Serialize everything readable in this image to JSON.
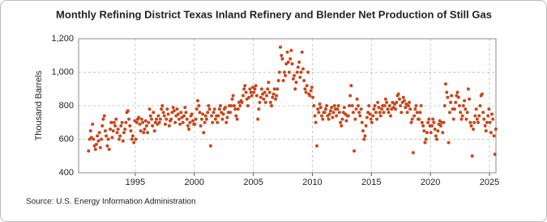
{
  "chart_data": {
    "type": "scatter",
    "title": "Monthly Refining District Texas Inland Refinery and Blender Net Production of Still Gas",
    "y_label": "Thousand Barrels",
    "source": "Source: U.S. Energy Information Administration",
    "color": "#c5481c",
    "grid": true,
    "xlim": [
      1990.2,
      2025.55
    ],
    "xticks": [
      1995,
      2000,
      2005,
      2010,
      2015,
      2020,
      2025
    ],
    "ylim": [
      400,
      1200
    ],
    "yticks": [
      400,
      600,
      800,
      {
        "value": 1000,
        "label": "1,000"
      },
      {
        "value": 1200,
        "label": "1,200"
      }
    ],
    "x": [
      1991.04,
      1991.13,
      1991.21,
      1991.29,
      1991.38,
      1991.46,
      1991.54,
      1991.63,
      1991.71,
      1991.79,
      1991.88,
      1991.96,
      1992.04,
      1992.13,
      1992.21,
      1992.29,
      1992.38,
      1992.46,
      1992.54,
      1992.63,
      1992.71,
      1992.79,
      1992.88,
      1992.96,
      1993.04,
      1993.13,
      1993.21,
      1993.29,
      1993.38,
      1993.46,
      1993.54,
      1993.63,
      1993.71,
      1993.79,
      1993.88,
      1993.96,
      1994.04,
      1994.13,
      1994.21,
      1994.29,
      1994.38,
      1994.46,
      1994.54,
      1994.63,
      1994.71,
      1994.79,
      1994.88,
      1994.96,
      1995.04,
      1995.13,
      1995.21,
      1995.29,
      1995.38,
      1995.46,
      1995.54,
      1995.63,
      1995.71,
      1995.79,
      1995.88,
      1995.96,
      1996.04,
      1996.13,
      1996.21,
      1996.29,
      1996.38,
      1996.46,
      1996.54,
      1996.63,
      1996.71,
      1996.79,
      1996.88,
      1996.96,
      1997.04,
      1997.13,
      1997.21,
      1997.29,
      1997.38,
      1997.46,
      1997.54,
      1997.63,
      1997.71,
      1997.79,
      1997.88,
      1997.96,
      1998.04,
      1998.13,
      1998.21,
      1998.29,
      1998.38,
      1998.46,
      1998.54,
      1998.63,
      1998.71,
      1998.79,
      1998.88,
      1998.96,
      1999.04,
      1999.13,
      1999.21,
      1999.29,
      1999.38,
      1999.46,
      1999.54,
      1999.63,
      1999.71,
      1999.79,
      1999.88,
      1999.96,
      2000.04,
      2000.13,
      2000.21,
      2000.29,
      2000.38,
      2000.46,
      2000.54,
      2000.63,
      2000.71,
      2000.79,
      2000.88,
      2000.96,
      2001.04,
      2001.13,
      2001.21,
      2001.29,
      2001.38,
      2001.46,
      2001.54,
      2001.63,
      2001.71,
      2001.79,
      2001.88,
      2001.96,
      2002.04,
      2002.13,
      2002.21,
      2002.29,
      2002.38,
      2002.46,
      2002.54,
      2002.63,
      2002.71,
      2002.79,
      2002.88,
      2002.96,
      2003.04,
      2003.13,
      2003.21,
      2003.29,
      2003.38,
      2003.46,
      2003.54,
      2003.63,
      2003.71,
      2003.79,
      2003.88,
      2003.96,
      2004.04,
      2004.13,
      2004.21,
      2004.29,
      2004.38,
      2004.46,
      2004.54,
      2004.63,
      2004.71,
      2004.79,
      2004.88,
      2004.96,
      2005.04,
      2005.13,
      2005.21,
      2005.29,
      2005.38,
      2005.46,
      2005.54,
      2005.63,
      2005.71,
      2005.79,
      2005.88,
      2005.96,
      2006.04,
      2006.13,
      2006.21,
      2006.29,
      2006.38,
      2006.46,
      2006.54,
      2006.63,
      2006.71,
      2006.79,
      2006.88,
      2006.96,
      2007.04,
      2007.13,
      2007.21,
      2007.29,
      2007.38,
      2007.46,
      2007.54,
      2007.63,
      2007.71,
      2007.79,
      2007.88,
      2007.96,
      2008.04,
      2008.13,
      2008.21,
      2008.29,
      2008.38,
      2008.46,
      2008.54,
      2008.63,
      2008.71,
      2008.79,
      2008.88,
      2008.96,
      2009.04,
      2009.13,
      2009.21,
      2009.29,
      2009.38,
      2009.46,
      2009.54,
      2009.63,
      2009.71,
      2009.79,
      2009.88,
      2009.96,
      2010.04,
      2010.13,
      2010.21,
      2010.29,
      2010.38,
      2010.46,
      2010.54,
      2010.63,
      2010.71,
      2010.79,
      2010.88,
      2010.96,
      2011.04,
      2011.13,
      2011.21,
      2011.29,
      2011.38,
      2011.46,
      2011.54,
      2011.63,
      2011.71,
      2011.79,
      2011.88,
      2011.96,
      2012.04,
      2012.13,
      2012.21,
      2012.29,
      2012.38,
      2012.46,
      2012.54,
      2012.63,
      2012.71,
      2012.79,
      2012.88,
      2012.96,
      2013.04,
      2013.13,
      2013.21,
      2013.29,
      2013.38,
      2013.46,
      2013.54,
      2013.63,
      2013.71,
      2013.79,
      2013.88,
      2013.96,
      2014.04,
      2014.13,
      2014.21,
      2014.29,
      2014.38,
      2014.46,
      2014.54,
      2014.63,
      2014.71,
      2014.79,
      2014.88,
      2014.96,
      2015.04,
      2015.13,
      2015.21,
      2015.29,
      2015.38,
      2015.46,
      2015.54,
      2015.63,
      2015.71,
      2015.79,
      2015.88,
      2015.96,
      2016.04,
      2016.13,
      2016.21,
      2016.29,
      2016.38,
      2016.46,
      2016.54,
      2016.63,
      2016.71,
      2016.79,
      2016.88,
      2016.96,
      2017.04,
      2017.13,
      2017.21,
      2017.29,
      2017.38,
      2017.46,
      2017.54,
      2017.63,
      2017.71,
      2017.79,
      2017.88,
      2017.96,
      2018.04,
      2018.13,
      2018.21,
      2018.29,
      2018.38,
      2018.46,
      2018.54,
      2018.63,
      2018.71,
      2018.79,
      2018.88,
      2018.96,
      2019.04,
      2019.13,
      2019.21,
      2019.29,
      2019.38,
      2019.46,
      2019.54,
      2019.63,
      2019.71,
      2019.79,
      2019.88,
      2019.96,
      2020.04,
      2020.13,
      2020.21,
      2020.29,
      2020.38,
      2020.46,
      2020.54,
      2020.63,
      2020.71,
      2020.79,
      2020.88,
      2020.96,
      2021.04,
      2021.13,
      2021.21,
      2021.29,
      2021.38,
      2021.46,
      2021.54,
      2021.63,
      2021.71,
      2021.79,
      2021.88,
      2021.96,
      2022.04,
      2022.13,
      2022.21,
      2022.29,
      2022.38,
      2022.46,
      2022.54,
      2022.63,
      2022.71,
      2022.79,
      2022.88,
      2022.96,
      2023.04,
      2023.13,
      2023.21,
      2023.29,
      2023.38,
      2023.46,
      2023.54,
      2023.63,
      2023.71,
      2023.79,
      2023.88,
      2023.96,
      2024.04,
      2024.13,
      2024.21,
      2024.29,
      2024.38,
      2024.46,
      2024.54,
      2024.63,
      2024.71,
      2024.79,
      2024.88,
      2024.96,
      2025.04,
      2025.13,
      2025.21,
      2025.29,
      2025.38,
      2025.46,
      2025.54
    ],
    "values": [
      530,
      600,
      650,
      610,
      690,
      600,
      560,
      540,
      570,
      620,
      590,
      640,
      550,
      600,
      680,
      720,
      740,
      650,
      620,
      560,
      600,
      540,
      660,
      700,
      610,
      650,
      700,
      680,
      720,
      640,
      660,
      600,
      620,
      680,
      700,
      590,
      640,
      660,
      700,
      760,
      770,
      720,
      680,
      650,
      600,
      620,
      580,
      710,
      600,
      700,
      720,
      730,
      690,
      650,
      720,
      700,
      640,
      660,
      710,
      680,
      640,
      700,
      780,
      740,
      720,
      680,
      760,
      650,
      700,
      720,
      690,
      740,
      700,
      720,
      780,
      800,
      760,
      740,
      690,
      720,
      780,
      750,
      680,
      710,
      720,
      760,
      790,
      770,
      700,
      740,
      780,
      750,
      720,
      690,
      760,
      730,
      700,
      740,
      790,
      760,
      720,
      680,
      660,
      700,
      740,
      750,
      710,
      690,
      690,
      720,
      780,
      830,
      800,
      760,
      680,
      720,
      750,
      640,
      700,
      740,
      720,
      760,
      800,
      780,
      560,
      740,
      700,
      760,
      780,
      720,
      740,
      700,
      740,
      780,
      800,
      760,
      720,
      750,
      780,
      790,
      700,
      730,
      760,
      800,
      760,
      800,
      840,
      860,
      800,
      780,
      740,
      720,
      780,
      820,
      800,
      830,
      820,
      860,
      900,
      920,
      880,
      840,
      800,
      850,
      900,
      880,
      860,
      910,
      880,
      900,
      920,
      860,
      720,
      780,
      820,
      850,
      900,
      870,
      840,
      880,
      820,
      860,
      900,
      940,
      880,
      820,
      800,
      850,
      870,
      900,
      840,
      860,
      900,
      950,
      1000,
      1150,
      1100,
      1080,
      950,
      1000,
      980,
      1050,
      1120,
      1060,
      1000,
      1080,
      1130,
      1050,
      960,
      980,
      900,
      940,
      1000,
      1030,
      1060,
      970,
      1000,
      1120,
      1020,
      950,
      900,
      880,
      920,
      1000,
      870,
      860,
      890,
      910,
      850,
      800,
      740,
      700,
      560,
      780,
      760,
      810,
      790,
      740,
      720,
      760,
      760,
      780,
      800,
      740,
      720,
      750,
      770,
      790,
      730,
      760,
      800,
      780,
      740,
      780,
      800,
      760,
      700,
      680,
      720,
      760,
      790,
      750,
      710,
      740,
      740,
      800,
      860,
      920,
      800,
      760,
      530,
      720,
      780,
      840,
      800,
      760,
      740,
      780,
      700,
      650,
      600,
      620,
      680,
      730,
      760,
      800,
      750,
      720,
      700,
      740,
      780,
      800,
      760,
      720,
      820,
      790,
      760,
      740,
      780,
      800,
      760,
      800,
      840,
      820,
      780,
      760,
      800,
      740,
      780,
      820,
      790,
      810,
      780,
      820,
      860,
      870,
      840,
      800,
      760,
      820,
      850,
      830,
      790,
      810,
      760,
      800,
      820,
      780,
      700,
      720,
      520,
      740,
      780,
      800,
      760,
      720,
      720,
      760,
      800,
      700,
      680,
      650,
      580,
      600,
      640,
      700,
      720,
      680,
      640,
      680,
      720,
      700,
      660,
      620,
      600,
      650,
      690,
      710,
      680,
      700,
      640,
      700,
      800,
      930,
      880,
      850,
      580,
      760,
      820,
      860,
      780,
      720,
      780,
      820,
      860,
      880,
      850,
      800,
      760,
      720,
      740,
      800,
      830,
      780,
      720,
      760,
      900,
      840,
      700,
      680,
      500,
      660,
      700,
      740,
      780,
      720,
      700,
      740,
      800,
      860,
      870,
      760,
      720,
      680,
      650,
      700,
      740,
      780,
      700,
      640,
      750,
      720,
      620,
      510,
      660
    ]
  }
}
